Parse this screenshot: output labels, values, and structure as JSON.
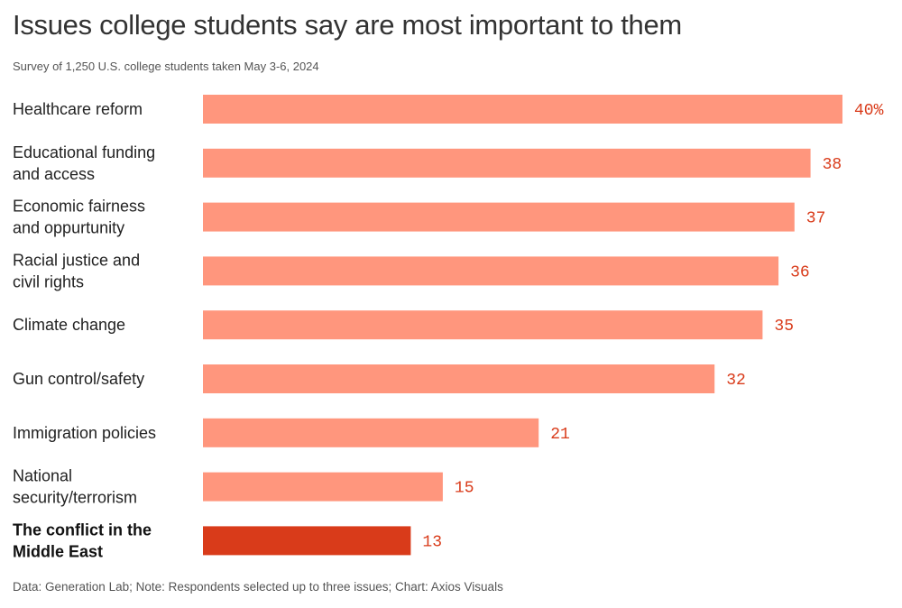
{
  "chart_data": {
    "type": "bar",
    "orientation": "horizontal",
    "title": "Issues college students say are most important to them",
    "subtitle": "Survey of 1,250 U.S. college students taken May 3-6, 2024",
    "footer": "Data: Generation Lab; Note: Respondents selected up to three issues; Chart: Axios Visuals",
    "categories": [
      [
        "Healthcare reform"
      ],
      [
        "Educational funding",
        "and access"
      ],
      [
        "Economic fairness",
        "and oppurtunity"
      ],
      [
        "Racial justice and",
        "civil rights"
      ],
      [
        "Climate change"
      ],
      [
        "Gun control/safety"
      ],
      [
        "Immigration policies"
      ],
      [
        "National",
        "security/terrorism"
      ],
      [
        "The conflict in the",
        "Middle East"
      ]
    ],
    "values": [
      40,
      38,
      37,
      36,
      35,
      32,
      21,
      15,
      13
    ],
    "value_labels": [
      "40%",
      "38",
      "37",
      "36",
      "35",
      "32",
      "21",
      "15",
      "13"
    ],
    "highlight_index": 8,
    "xlim": [
      0,
      40
    ],
    "unit": "%",
    "colors": {
      "bar": "#ff967d",
      "highlight": "#d93b1a",
      "value_text": "#d93b1a"
    }
  }
}
